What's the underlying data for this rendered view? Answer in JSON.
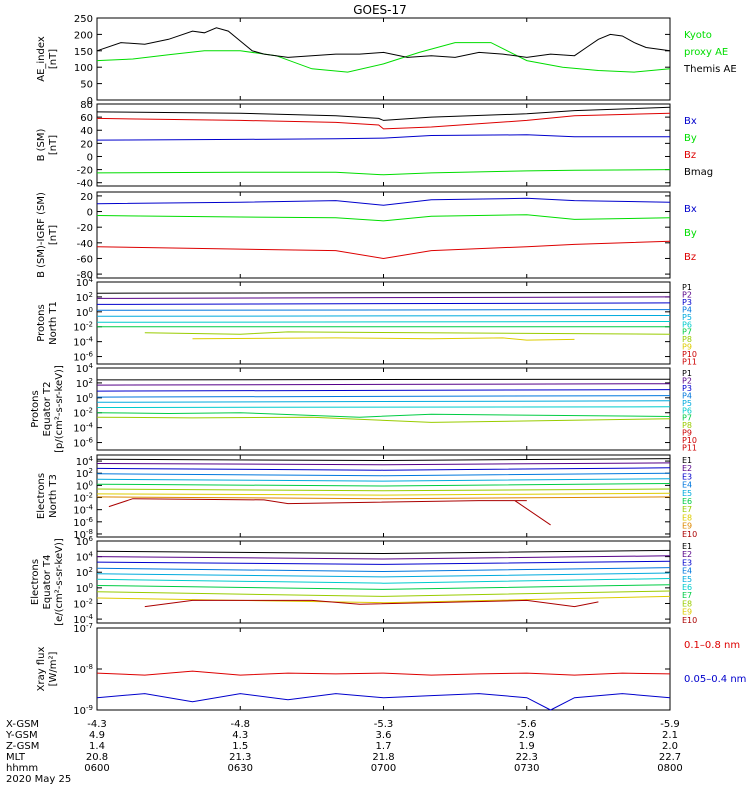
{
  "title": "GOES-17",
  "date_label": "2020 May 25",
  "colors": {
    "black": "#000000",
    "green": "#00dd00",
    "red": "#dd0000",
    "blue": "#0000cc"
  },
  "chart_data": [
    {
      "type": "line",
      "id": "ae",
      "ylabel": [
        "AE_index",
        "[nT]"
      ],
      "ylim": [
        0,
        250
      ],
      "yticks": [
        0,
        50,
        100,
        150,
        200,
        250
      ],
      "log": false,
      "series": [
        {
          "name": "Kyoto proxy AE",
          "label_lines": [
            "Kyoto",
            "proxy AE"
          ],
          "color": "#00dd00",
          "x": [
            0,
            15,
            30,
            45,
            60,
            75,
            90,
            105,
            120,
            135,
            150,
            165,
            180,
            195,
            210,
            225,
            240
          ],
          "y": [
            120,
            125,
            138,
            150,
            150,
            135,
            95,
            85,
            110,
            145,
            175,
            175,
            120,
            100,
            90,
            85,
            95
          ]
        },
        {
          "name": "Themis AE",
          "label_lines": [
            "Themis AE"
          ],
          "color": "#000000",
          "x": [
            0,
            10,
            20,
            30,
            40,
            45,
            50,
            55,
            60,
            65,
            70,
            80,
            90,
            100,
            110,
            120,
            130,
            140,
            150,
            160,
            170,
            180,
            190,
            200,
            205,
            210,
            215,
            220,
            225,
            230,
            240
          ],
          "y": [
            150,
            175,
            170,
            185,
            210,
            205,
            220,
            210,
            180,
            150,
            140,
            130,
            135,
            140,
            140,
            145,
            130,
            135,
            130,
            145,
            140,
            130,
            140,
            135,
            160,
            185,
            200,
            195,
            175,
            160,
            150
          ]
        }
      ]
    },
    {
      "type": "line",
      "id": "bsm",
      "ylabel": [
        "B (SM)",
        "[nT]"
      ],
      "ylim": [
        -45,
        80
      ],
      "yticks": [
        -40,
        -20,
        0,
        20,
        40,
        60,
        80
      ],
      "log": false,
      "series": [
        {
          "name": "Bx",
          "color": "#0000cc",
          "x": [
            0,
            60,
            100,
            120,
            140,
            180,
            200,
            240
          ],
          "y": [
            25,
            26,
            27,
            28,
            32,
            33,
            30,
            30
          ]
        },
        {
          "name": "By",
          "color": "#00dd00",
          "x": [
            0,
            60,
            100,
            120,
            140,
            180,
            200,
            240
          ],
          "y": [
            -25,
            -24,
            -24,
            -28,
            -25,
            -22,
            -21,
            -20
          ]
        },
        {
          "name": "Bz",
          "color": "#dd0000",
          "x": [
            0,
            60,
            100,
            118,
            120,
            140,
            180,
            200,
            240
          ],
          "y": [
            58,
            55,
            52,
            48,
            42,
            45,
            55,
            62,
            66
          ]
        },
        {
          "name": "Bmag",
          "color": "#000000",
          "x": [
            0,
            60,
            100,
            118,
            120,
            140,
            180,
            200,
            240
          ],
          "y": [
            68,
            66,
            62,
            58,
            55,
            60,
            65,
            70,
            75
          ]
        }
      ]
    },
    {
      "type": "line",
      "id": "bigrf",
      "ylabel": [
        "B (SM)-IGRF (SM)",
        "[nT]"
      ],
      "ylim": [
        -85,
        25
      ],
      "yticks": [
        -80,
        -60,
        -40,
        -20,
        0,
        20
      ],
      "log": false,
      "series": [
        {
          "name": "Bx",
          "color": "#0000cc",
          "x": [
            0,
            60,
            100,
            120,
            140,
            180,
            200,
            240
          ],
          "y": [
            10,
            12,
            14,
            8,
            15,
            17,
            14,
            12
          ]
        },
        {
          "name": "By",
          "color": "#00dd00",
          "x": [
            0,
            60,
            100,
            120,
            140,
            180,
            200,
            240
          ],
          "y": [
            -5,
            -7,
            -8,
            -12,
            -6,
            -4,
            -10,
            -8
          ]
        },
        {
          "name": "Bz",
          "color": "#dd0000",
          "x": [
            0,
            60,
            100,
            120,
            140,
            180,
            200,
            240
          ],
          "y": [
            -45,
            -48,
            -50,
            -60,
            -50,
            -45,
            -42,
            -38
          ]
        }
      ]
    },
    {
      "type": "line",
      "id": "pn",
      "ylabel": [
        "Protons",
        "North T1"
      ],
      "ylim": [
        -7,
        4
      ],
      "log": true,
      "yticks": [
        4,
        2,
        0,
        -2,
        -4,
        -6
      ],
      "legend": [
        "P1",
        "P2",
        "P3",
        "P4",
        "P5",
        "P6",
        "P7",
        "P8",
        "P9",
        "P10",
        "P11"
      ],
      "series": [
        {
          "name": "P1",
          "color": "#000000",
          "x": [
            0,
            240
          ],
          "y": [
            2.5,
            2.6
          ]
        },
        {
          "name": "P2",
          "color": "#550088",
          "x": [
            0,
            240
          ],
          "y": [
            1.8,
            2.0
          ]
        },
        {
          "name": "P3",
          "color": "#0000cc",
          "x": [
            0,
            240
          ],
          "y": [
            1.0,
            1.2
          ]
        },
        {
          "name": "P4",
          "color": "#0077dd",
          "x": [
            0,
            240
          ],
          "y": [
            0.2,
            0.3
          ]
        },
        {
          "name": "P5",
          "color": "#00aadd",
          "x": [
            0,
            240
          ],
          "y": [
            -0.6,
            -0.5
          ]
        },
        {
          "name": "P6",
          "color": "#00cccc",
          "x": [
            0,
            240
          ],
          "y": [
            -1.4,
            -1.3
          ]
        },
        {
          "name": "P7",
          "color": "#00cc44",
          "x": [
            0,
            240
          ],
          "y": [
            -2.0,
            -2.0
          ]
        },
        {
          "name": "P8",
          "color": "#99cc00",
          "x": [
            20,
            60,
            80,
            240
          ],
          "y": [
            -2.8,
            -3.0,
            -2.7,
            -3.0
          ]
        },
        {
          "name": "P9",
          "color": "#ddcc00",
          "x": [
            40,
            100,
            140,
            170,
            180,
            200
          ],
          "y": [
            -3.6,
            -3.5,
            -3.6,
            -3.5,
            -3.8,
            -3.7
          ]
        }
      ]
    },
    {
      "type": "line",
      "id": "pe",
      "ylabel": [
        "Protons",
        "Equator T2",
        "[p/(cm²-s-sr-keV)]"
      ],
      "ylim": [
        -7,
        4
      ],
      "log": true,
      "yticks": [
        4,
        2,
        0,
        -2,
        -4,
        -6
      ],
      "legend": [
        "P1",
        "P2",
        "P3",
        "P4",
        "P5",
        "P6",
        "P7",
        "P8",
        "P9",
        "P10",
        "P11"
      ],
      "series": [
        {
          "name": "P1",
          "color": "#000000",
          "x": [
            0,
            240
          ],
          "y": [
            2.4,
            2.5
          ]
        },
        {
          "name": "P2",
          "color": "#550088",
          "x": [
            0,
            240
          ],
          "y": [
            1.7,
            1.9
          ]
        },
        {
          "name": "P3",
          "color": "#0000cc",
          "x": [
            0,
            240
          ],
          "y": [
            0.9,
            1.1
          ]
        },
        {
          "name": "P4",
          "color": "#0077dd",
          "x": [
            0,
            240
          ],
          "y": [
            0.1,
            0.3
          ]
        },
        {
          "name": "P5",
          "color": "#00aadd",
          "x": [
            0,
            240
          ],
          "y": [
            -0.6,
            -0.4
          ]
        },
        {
          "name": "P6",
          "color": "#00cccc",
          "x": [
            0,
            240
          ],
          "y": [
            -1.3,
            -1.2
          ]
        },
        {
          "name": "P7",
          "color": "#00cc44",
          "x": [
            0,
            30,
            60,
            110,
            140,
            240
          ],
          "y": [
            -2.0,
            -2.1,
            -2.0,
            -2.6,
            -2.2,
            -2.5
          ]
        },
        {
          "name": "P8",
          "color": "#99cc00",
          "x": [
            0,
            40,
            90,
            140,
            240
          ],
          "y": [
            -2.6,
            -2.7,
            -2.6,
            -3.3,
            -2.8
          ]
        }
      ]
    },
    {
      "type": "line",
      "id": "en",
      "ylabel": [
        "Electrons",
        "North T3"
      ],
      "ylim": [
        -8.5,
        5
      ],
      "log": true,
      "yticks": [
        4,
        2,
        0,
        -2,
        -4,
        -6,
        -8
      ],
      "legend": [
        "E1",
        "E2",
        "E3",
        "E4",
        "E5",
        "E6",
        "E7",
        "E8",
        "E9",
        "E10"
      ],
      "series": [
        {
          "name": "E1",
          "color": "#000000",
          "x": [
            0,
            120,
            240
          ],
          "y": [
            4.3,
            4.1,
            4.4
          ]
        },
        {
          "name": "E2",
          "color": "#550088",
          "x": [
            0,
            120,
            240
          ],
          "y": [
            3.6,
            3.4,
            3.7
          ]
        },
        {
          "name": "E3",
          "color": "#0000cc",
          "x": [
            0,
            120,
            240
          ],
          "y": [
            2.8,
            2.5,
            2.9
          ]
        },
        {
          "name": "E4",
          "color": "#0077dd",
          "x": [
            0,
            120,
            240
          ],
          "y": [
            1.9,
            1.6,
            2.0
          ]
        },
        {
          "name": "E5",
          "color": "#00aadd",
          "x": [
            0,
            120,
            240
          ],
          "y": [
            1.0,
            0.7,
            1.1
          ]
        },
        {
          "name": "E6",
          "color": "#00cc44",
          "x": [
            0,
            120,
            240
          ],
          "y": [
            0.2,
            -0.1,
            0.3
          ]
        },
        {
          "name": "E7",
          "color": "#99cc00",
          "x": [
            0,
            120,
            240
          ],
          "y": [
            -0.6,
            -0.9,
            -0.6
          ]
        },
        {
          "name": "E8",
          "color": "#ddcc00",
          "x": [
            0,
            120,
            240
          ],
          "y": [
            -1.4,
            -1.6,
            -1.3
          ]
        },
        {
          "name": "E9",
          "color": "#dd8800",
          "x": [
            0,
            120,
            240
          ],
          "y": [
            -1.9,
            -2.2,
            -1.9
          ]
        },
        {
          "name": "E10",
          "color": "#aa0000",
          "x": [
            5,
            15,
            70,
            80,
            160,
            180,
            175,
            190
          ],
          "y": [
            -3.5,
            -2.2,
            -2.4,
            -3.0,
            -2.5,
            -2.5,
            -2.5,
            -6.5
          ]
        }
      ]
    },
    {
      "type": "line",
      "id": "ee",
      "ylabel": [
        "Electrons",
        "Equator T4",
        "[e/(cm²-s-sr-keV)]"
      ],
      "ylim": [
        -4.5,
        6
      ],
      "log": true,
      "yticks": [
        6,
        4,
        2,
        0,
        -2,
        -4
      ],
      "legend": [
        "E1",
        "E2",
        "E3",
        "E4",
        "E5",
        "E6",
        "E7",
        "E8",
        "E9",
        "E10"
      ],
      "series": [
        {
          "name": "E1",
          "color": "#000000",
          "x": [
            0,
            120,
            240
          ],
          "y": [
            4.7,
            4.4,
            4.8
          ]
        },
        {
          "name": "E2",
          "color": "#550088",
          "x": [
            0,
            120,
            240
          ],
          "y": [
            4.0,
            3.7,
            4.1
          ]
        },
        {
          "name": "E3",
          "color": "#0000cc",
          "x": [
            0,
            120,
            240
          ],
          "y": [
            3.3,
            3.0,
            3.4
          ]
        },
        {
          "name": "E4",
          "color": "#0077dd",
          "x": [
            0,
            120,
            240
          ],
          "y": [
            2.5,
            2.1,
            2.6
          ]
        },
        {
          "name": "E5",
          "color": "#00aadd",
          "x": [
            0,
            120,
            240
          ],
          "y": [
            1.8,
            1.4,
            1.9
          ]
        },
        {
          "name": "E6",
          "color": "#00cccc",
          "x": [
            0,
            120,
            240
          ],
          "y": [
            1.1,
            0.6,
            1.2
          ]
        },
        {
          "name": "E7",
          "color": "#00cc44",
          "x": [
            0,
            120,
            240
          ],
          "y": [
            0.3,
            -0.2,
            0.4
          ]
        },
        {
          "name": "E8",
          "color": "#99cc00",
          "x": [
            0,
            120,
            240
          ],
          "y": [
            -0.5,
            -1.1,
            -0.4
          ]
        },
        {
          "name": "E9",
          "color": "#ddcc00",
          "x": [
            0,
            120,
            240
          ],
          "y": [
            -1.3,
            -1.9,
            -1.1
          ]
        },
        {
          "name": "E10",
          "color": "#aa0000",
          "x": [
            20,
            40,
            90,
            110,
            180,
            200,
            210
          ],
          "y": [
            -2.4,
            -1.6,
            -1.6,
            -2.1,
            -1.6,
            -2.4,
            -1.8
          ]
        }
      ]
    },
    {
      "type": "line",
      "id": "xray",
      "ylabel": [
        "Xray flux",
        "[W/m²]"
      ],
      "ylim": [
        -9,
        -7
      ],
      "log": true,
      "yticks": [
        -7,
        -8,
        -9
      ],
      "series": [
        {
          "name": "0.1–0.8 nm",
          "color": "#dd0000",
          "x": [
            0,
            20,
            40,
            60,
            80,
            100,
            120,
            140,
            160,
            180,
            200,
            220,
            240
          ],
          "y": [
            -8.1,
            -8.15,
            -8.05,
            -8.15,
            -8.1,
            -8.12,
            -8.1,
            -8.15,
            -8.12,
            -8.1,
            -8.15,
            -8.1,
            -8.12
          ]
        },
        {
          "name": "0.05–0.4 nm",
          "color": "#0000cc",
          "x": [
            0,
            20,
            40,
            60,
            80,
            100,
            120,
            140,
            160,
            180,
            190,
            200,
            220,
            240
          ],
          "y": [
            -8.7,
            -8.6,
            -8.8,
            -8.6,
            -8.75,
            -8.6,
            -8.7,
            -8.65,
            -8.6,
            -8.7,
            -9.0,
            -8.7,
            -8.6,
            -8.7
          ]
        }
      ]
    }
  ],
  "x_axis": {
    "row_labels": [
      "X-GSM",
      "Y-GSM",
      "Z-GSM",
      "MLT",
      "hhmm"
    ],
    "ticks": [
      {
        "t": 0,
        "vals": [
          "-4.3",
          "4.9",
          "1.4",
          "20.8",
          "0600"
        ]
      },
      {
        "t": 60,
        "vals": [
          "-4.8",
          "4.3",
          "1.5",
          "21.3",
          "0630"
        ]
      },
      {
        "t": 120,
        "vals": [
          "-5.3",
          "3.6",
          "1.7",
          "21.8",
          "0700"
        ]
      },
      {
        "t": 180,
        "vals": [
          "-5.6",
          "2.9",
          "1.9",
          "22.3",
          "0730"
        ]
      },
      {
        "t": 240,
        "vals": [
          "-5.9",
          "2.1",
          "2.0",
          "22.7",
          "0800"
        ]
      }
    ]
  }
}
